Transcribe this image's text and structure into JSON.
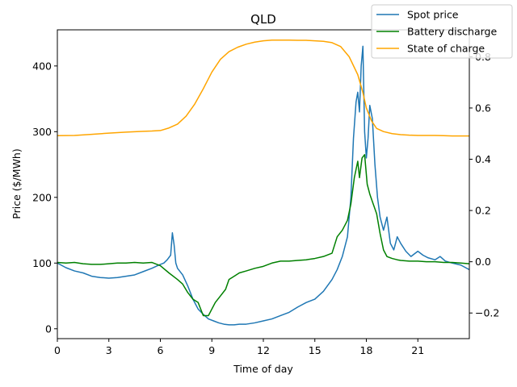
{
  "chart_data": {
    "type": "line",
    "title": "QLD",
    "xlabel": "Time of day",
    "ylabel": "Price ($/MWh)",
    "y2label": "",
    "xlim": [
      0,
      24
    ],
    "ylim": [
      -15,
      455
    ],
    "y2lim": [
      -0.3,
      0.905
    ],
    "x_ticks": [
      0,
      3,
      6,
      9,
      12,
      15,
      18,
      21
    ],
    "y_ticks": [
      0,
      100,
      200,
      300,
      400
    ],
    "y2_ticks": [
      -0.2,
      0.0,
      0.2,
      0.4,
      0.6,
      0.8
    ],
    "grid": false,
    "legend_position": "top-right",
    "series": [
      {
        "name": "Spot price",
        "axis": "left",
        "color": "#1f77b4",
        "x": [
          0,
          0.5,
          1,
          1.5,
          2,
          2.5,
          3,
          3.5,
          4,
          4.5,
          5,
          5.5,
          6,
          6.2,
          6.4,
          6.6,
          6.7,
          6.8,
          6.9,
          7,
          7.3,
          7.6,
          7.9,
          8.2,
          8.5,
          8.8,
          9.1,
          9.4,
          9.7,
          10,
          10.3,
          10.6,
          11,
          11.5,
          12,
          12.5,
          13,
          13.5,
          14,
          14.5,
          15,
          15.5,
          16,
          16.3,
          16.6,
          16.9,
          17.1,
          17.25,
          17.4,
          17.5,
          17.6,
          17.7,
          17.8,
          17.9,
          18,
          18.1,
          18.2,
          18.35,
          18.5,
          18.65,
          18.8,
          19,
          19.2,
          19.4,
          19.6,
          19.8,
          20,
          20.3,
          20.6,
          21,
          21.3,
          21.6,
          22,
          22.3,
          22.6,
          23,
          23.5,
          24
        ],
        "y": [
          100,
          93,
          88,
          85,
          80,
          78,
          77,
          78,
          80,
          82,
          87,
          92,
          98,
          100,
          105,
          112,
          146,
          128,
          100,
          92,
          82,
          65,
          45,
          30,
          22,
          15,
          12,
          9,
          7,
          6,
          6,
          7,
          7,
          9,
          12,
          15,
          20,
          25,
          33,
          40,
          45,
          57,
          75,
          90,
          110,
          140,
          200,
          290,
          345,
          360,
          330,
          400,
          430,
          300,
          260,
          290,
          340,
          320,
          250,
          200,
          170,
          150,
          170,
          130,
          120,
          140,
          130,
          118,
          110,
          118,
          112,
          108,
          105,
          110,
          103,
          100,
          97,
          90
        ]
      },
      {
        "name": "Battery discharge",
        "axis": "left",
        "color": "#008000",
        "x": [
          0,
          0.5,
          1,
          1.5,
          2,
          2.5,
          3,
          3.5,
          4,
          4.5,
          5,
          5.5,
          6,
          6.5,
          7,
          7.3,
          7.6,
          7.9,
          8.2,
          8.5,
          8.8,
          9,
          9.2,
          9.5,
          9.8,
          10,
          10.3,
          10.6,
          11,
          11.5,
          12,
          12.5,
          13,
          13.5,
          14,
          14.5,
          15,
          15.5,
          16,
          16.3,
          16.6,
          16.9,
          17.1,
          17.3,
          17.5,
          17.6,
          17.75,
          17.9,
          18.05,
          18.2,
          18.4,
          18.6,
          18.8,
          19,
          19.2,
          19.5,
          19.8,
          20,
          20.5,
          21,
          21.5,
          22,
          22.5,
          23,
          23.5,
          24
        ],
        "y": [
          101,
          100,
          101,
          99,
          98,
          98,
          99,
          100,
          100,
          101,
          100,
          101,
          96,
          85,
          75,
          68,
          55,
          45,
          40,
          20,
          20,
          30,
          40,
          50,
          60,
          75,
          80,
          85,
          88,
          92,
          95,
          100,
          103,
          103,
          104,
          105,
          107,
          110,
          115,
          140,
          150,
          165,
          190,
          230,
          255,
          230,
          260,
          265,
          220,
          205,
          190,
          175,
          145,
          120,
          110,
          107,
          105,
          104,
          103,
          103,
          102,
          102,
          101,
          101,
          100,
          99
        ]
      },
      {
        "name": "State of charge",
        "axis": "right",
        "color": "#ffa500",
        "x": [
          0,
          1,
          2,
          3,
          4,
          5,
          5.5,
          6,
          6.5,
          7,
          7.5,
          8,
          8.5,
          9,
          9.5,
          10,
          10.5,
          11,
          11.5,
          12,
          12.5,
          13,
          13.5,
          14,
          14.5,
          15,
          15.5,
          16,
          16.5,
          17,
          17.5,
          17.8,
          18,
          18.3,
          18.6,
          19,
          19.5,
          20,
          20.5,
          21,
          21.5,
          22,
          22.5,
          23,
          23.5,
          24
        ],
        "y": [
          0.492,
          0.493,
          0.497,
          0.502,
          0.506,
          0.509,
          0.51,
          0.512,
          0.522,
          0.537,
          0.568,
          0.615,
          0.675,
          0.74,
          0.79,
          0.82,
          0.837,
          0.849,
          0.857,
          0.862,
          0.865,
          0.865,
          0.865,
          0.864,
          0.864,
          0.862,
          0.86,
          0.855,
          0.84,
          0.8,
          0.73,
          0.66,
          0.6,
          0.55,
          0.52,
          0.508,
          0.5,
          0.496,
          0.494,
          0.493,
          0.493,
          0.493,
          0.492,
          0.491,
          0.491,
          0.491
        ]
      }
    ]
  }
}
